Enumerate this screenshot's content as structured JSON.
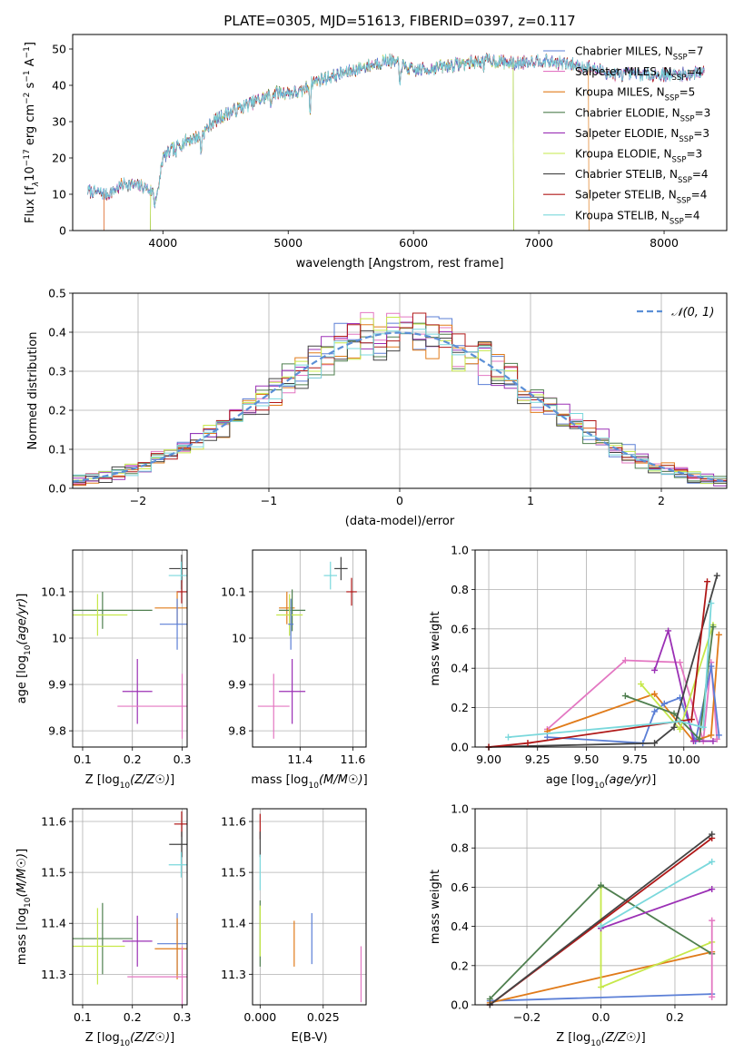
{
  "title": "PLATE=0305, MJD=51613, FIBERID=0397, z=0.117",
  "colors": {
    "chabrier_miles": "#5b7fd6",
    "salpeter_miles": "#e377c2",
    "kroupa_miles": "#e07b1a",
    "chabrier_elodie": "#4f7f4f",
    "salpeter_elodie": "#9b30b5",
    "kroupa_elodie": "#c6e84a",
    "chabrier_stelib": "#444444",
    "salpeter_stelib": "#b01818",
    "kroupa_stelib": "#7ad8dc",
    "normal_curve": "#5b8fd6"
  },
  "legend": [
    {
      "key": "chabrier_miles",
      "label": "Chabrier MILES, N",
      "sub": "SSP",
      "rest": "=7"
    },
    {
      "key": "salpeter_miles",
      "label": "Salpeter MILES, N",
      "sub": "SSP",
      "rest": "=4"
    },
    {
      "key": "kroupa_miles",
      "label": "Kroupa MILES, N",
      "sub": "SSP",
      "rest": "=5"
    },
    {
      "key": "chabrier_elodie",
      "label": "Chabrier ELODIE, N",
      "sub": "SSP",
      "rest": "=3"
    },
    {
      "key": "salpeter_elodie",
      "label": "Salpeter ELODIE, N",
      "sub": "SSP",
      "rest": "=3"
    },
    {
      "key": "kroupa_elodie",
      "label": "Kroupa ELODIE, N",
      "sub": "SSP",
      "rest": "=3"
    },
    {
      "key": "chabrier_stelib",
      "label": "Chabrier STELIB, N",
      "sub": "SSP",
      "rest": "=4"
    },
    {
      "key": "salpeter_stelib",
      "label": "Salpeter STELIB, N",
      "sub": "SSP",
      "rest": "=4"
    },
    {
      "key": "kroupa_stelib",
      "label": "Kroupa STELIB, N",
      "sub": "SSP",
      "rest": "=4"
    }
  ],
  "chart_data": [
    {
      "id": "spectrum",
      "type": "line",
      "xlabel": "wavelength [Angstrom, rest frame]",
      "ylabel": "Flux [f_λ 10^-17 erg cm^-2 s^-1 A^-1]",
      "xlim": [
        3280,
        8500
      ],
      "ylim": [
        0,
        54
      ],
      "xticks": [
        4000,
        5000,
        6000,
        7000,
        8000
      ],
      "yticks": [
        0,
        10,
        20,
        30,
        40,
        50
      ],
      "x_range_data": [
        3400,
        8320
      ],
      "continuum": [
        [
          3400,
          11
        ],
        [
          3550,
          10
        ],
        [
          3700,
          13
        ],
        [
          3850,
          12
        ],
        [
          3950,
          10
        ],
        [
          4000,
          20
        ],
        [
          4100,
          23
        ],
        [
          4200,
          25
        ],
        [
          4300,
          26
        ],
        [
          4400,
          30
        ],
        [
          4500,
          32
        ],
        [
          4700,
          35
        ],
        [
          4900,
          38
        ],
        [
          5100,
          38
        ],
        [
          5200,
          41
        ],
        [
          5400,
          43
        ],
        [
          5600,
          45
        ],
        [
          5800,
          47
        ],
        [
          6000,
          44
        ],
        [
          6200,
          45
        ],
        [
          6400,
          46
        ],
        [
          6600,
          47
        ],
        [
          6800,
          46
        ],
        [
          7000,
          47
        ],
        [
          7200,
          46
        ],
        [
          7400,
          45
        ],
        [
          7600,
          43
        ],
        [
          7800,
          43
        ],
        [
          8000,
          43
        ],
        [
          8200,
          43
        ],
        [
          8320,
          44
        ]
      ],
      "absorption_features": [
        [
          3934,
          4
        ],
        [
          3968,
          3
        ],
        [
          4102,
          3
        ],
        [
          4304,
          5
        ],
        [
          4861,
          3
        ],
        [
          5175,
          8
        ],
        [
          5890,
          6
        ],
        [
          6563,
          2
        ]
      ],
      "model_cutoffs": [
        {
          "key": "salpeter_miles",
          "start": 3530,
          "end": 8320
        },
        {
          "key": "kroupa_miles",
          "start": 3530,
          "end": 7400
        },
        {
          "key": "kroupa_elodie",
          "start": 3900,
          "end": 6800
        },
        {
          "key": "chabrier_elodie",
          "start": 3900,
          "end": 6800
        }
      ],
      "grid": false
    },
    {
      "id": "residual_histogram",
      "type": "histogram",
      "xlabel": "(data-model)/error",
      "ylabel": "Normed distribution",
      "xlim": [
        -2.5,
        2.5
      ],
      "ylim": [
        0,
        0.5
      ],
      "xticks": [
        -2,
        -1,
        0,
        1,
        2
      ],
      "yticks": [
        0.0,
        0.1,
        0.2,
        0.3,
        0.4,
        0.5
      ],
      "bin_width": 0.1,
      "series_keys": [
        "chabrier_miles",
        "salpeter_miles",
        "kroupa_miles",
        "chabrier_elodie",
        "salpeter_elodie",
        "kroupa_elodie",
        "chabrier_stelib",
        "salpeter_stelib",
        "kroupa_stelib"
      ],
      "legend_label": "𝒩(0, 1)",
      "legend_location": "upper right",
      "grid": true
    },
    {
      "id": "age_vs_Z",
      "type": "errorbar",
      "xlabel": "Z [log10(Z/Z☉)]",
      "ylabel": "age  [log10(age/yr)]",
      "xlim": [
        0.08,
        0.31
      ],
      "ylim": [
        9.765,
        10.19
      ],
      "xticks": [
        0.1,
        0.2,
        0.3
      ],
      "yticks": [
        9.8,
        9.9,
        10.0,
        10.1
      ],
      "points": [
        {
          "key": "chabrier_stelib",
          "x": 0.299,
          "xerr": 0.025,
          "y": 10.15,
          "yerr": 0.03
        },
        {
          "key": "kroupa_stelib",
          "x": 0.298,
          "xerr": 0.025,
          "y": 10.135,
          "yerr": 0.03
        },
        {
          "key": "salpeter_stelib",
          "x": 0.299,
          "xerr": 0.01,
          "y": 10.1,
          "yerr": 0.025
        },
        {
          "key": "kroupa_miles",
          "x": 0.29,
          "xerr": 0.045,
          "y": 10.065,
          "yerr": 0.035
        },
        {
          "key": "chabrier_elodie",
          "x": 0.14,
          "xerr": 0.1,
          "y": 10.06,
          "yerr": 0.04
        },
        {
          "key": "kroupa_elodie",
          "x": 0.13,
          "xerr": 0.06,
          "y": 10.05,
          "yerr": 0.045
        },
        {
          "key": "chabrier_miles",
          "x": 0.29,
          "xerr": 0.035,
          "y": 10.03,
          "yerr": 0.055
        },
        {
          "key": "salpeter_elodie",
          "x": 0.21,
          "xerr": 0.03,
          "y": 9.885,
          "yerr": 0.07
        },
        {
          "key": "salpeter_miles",
          "x": 0.3,
          "xerr": 0.13,
          "y": 9.853,
          "yerr": 0.07
        }
      ],
      "grid": true
    },
    {
      "id": "age_vs_mass",
      "type": "errorbar",
      "xlabel": "mass [log10(M/M☉)]",
      "ylabel": "",
      "xlim": [
        11.22,
        11.65
      ],
      "ylim": [
        9.765,
        10.19
      ],
      "xticks": [
        11.4,
        11.6
      ],
      "yticks": [
        9.8,
        9.9,
        10.0,
        10.1
      ],
      "points": [
        {
          "key": "chabrier_stelib",
          "x": 11.555,
          "xerr": 0.025,
          "y": 10.15,
          "yerr": 0.025
        },
        {
          "key": "kroupa_stelib",
          "x": 11.515,
          "xerr": 0.025,
          "y": 10.135,
          "yerr": 0.03
        },
        {
          "key": "salpeter_stelib",
          "x": 11.595,
          "xerr": 0.02,
          "y": 10.1,
          "yerr": 0.03
        },
        {
          "key": "kroupa_miles",
          "x": 11.35,
          "xerr": 0.03,
          "y": 10.065,
          "yerr": 0.035
        },
        {
          "key": "chabrier_elodie",
          "x": 11.37,
          "xerr": 0.05,
          "y": 10.06,
          "yerr": 0.045
        },
        {
          "key": "kroupa_elodie",
          "x": 11.36,
          "xerr": 0.05,
          "y": 10.05,
          "yerr": 0.045
        },
        {
          "key": "chabrier_miles",
          "x": 11.365,
          "xerr": 0.01,
          "y": 10.03,
          "yerr": 0.055
        },
        {
          "key": "salpeter_elodie",
          "x": 11.37,
          "xerr": 0.05,
          "y": 9.885,
          "yerr": 0.07
        },
        {
          "key": "salpeter_miles",
          "x": 11.3,
          "xerr": 0.06,
          "y": 9.853,
          "yerr": 0.07
        }
      ],
      "grid": true
    },
    {
      "id": "massweight_vs_age",
      "type": "line",
      "xlabel": "age  [log10(age/yr)]",
      "ylabel": "mass weight",
      "xlim": [
        8.93,
        10.22
      ],
      "ylim": [
        0,
        1.0
      ],
      "xticks": [
        9.0,
        9.25,
        9.5,
        9.75,
        10.0
      ],
      "xticklabels": [
        "9.00",
        "9.25",
        "9.50",
        "9.75",
        "10.00"
      ],
      "yticks": [
        0.0,
        0.2,
        0.4,
        0.6,
        0.8,
        1.0
      ],
      "series": [
        {
          "key": "salpeter_miles",
          "points": [
            [
              9.3,
              0.09
            ],
            [
              9.7,
              0.44
            ],
            [
              9.98,
              0.43
            ],
            [
              10.1,
              0.03
            ],
            [
              10.14,
              0.43
            ],
            [
              10.17,
              0.04
            ]
          ]
        },
        {
          "key": "kroupa_miles",
          "points": [
            [
              9.3,
              0.08
            ],
            [
              9.85,
              0.27
            ],
            [
              10.05,
              0.03
            ],
            [
              10.14,
              0.06
            ],
            [
              10.18,
              0.57
            ]
          ]
        },
        {
          "key": "chabrier_miles",
          "points": [
            [
              9.3,
              0.05
            ],
            [
              9.79,
              0.02
            ],
            [
              9.85,
              0.18
            ],
            [
              9.9,
              0.22
            ],
            [
              9.98,
              0.25
            ],
            [
              10.06,
              0.03
            ],
            [
              10.14,
              0.41
            ],
            [
              10.18,
              0.06
            ]
          ]
        },
        {
          "key": "salpeter_elodie",
          "points": [
            [
              9.85,
              0.39
            ],
            [
              9.92,
              0.59
            ],
            [
              10.05,
              0.03
            ],
            [
              10.15,
              0.03
            ]
          ]
        },
        {
          "key": "kroupa_elodie",
          "points": [
            [
              9.78,
              0.32
            ],
            [
              9.98,
              0.09
            ],
            [
              10.15,
              0.62
            ]
          ]
        },
        {
          "key": "chabrier_elodie",
          "points": [
            [
              9.7,
              0.26
            ],
            [
              9.95,
              0.17
            ],
            [
              10.08,
              0.04
            ],
            [
              10.15,
              0.61
            ]
          ]
        },
        {
          "key": "chabrier_stelib",
          "points": [
            [
              9.0,
              0.0
            ],
            [
              9.85,
              0.02
            ],
            [
              9.95,
              0.1
            ],
            [
              10.17,
              0.87
            ]
          ]
        },
        {
          "key": "salpeter_stelib",
          "points": [
            [
              9.0,
              0.0
            ],
            [
              9.2,
              0.02
            ],
            [
              10.04,
              0.14
            ],
            [
              10.12,
              0.84
            ]
          ]
        },
        {
          "key": "kroupa_stelib",
          "points": [
            [
              9.1,
              0.05
            ],
            [
              9.98,
              0.13
            ],
            [
              10.1,
              0.1
            ],
            [
              10.14,
              0.73
            ]
          ]
        }
      ],
      "grid": true
    },
    {
      "id": "mass_vs_Z",
      "type": "errorbar",
      "xlabel": "Z [log10(Z/Z☉)]",
      "ylabel": "mass [log10(M/M☉)]",
      "xlim": [
        0.08,
        0.31
      ],
      "ylim": [
        11.24,
        11.625
      ],
      "xticks": [
        0.1,
        0.2,
        0.3
      ],
      "yticks": [
        11.3,
        11.4,
        11.5,
        11.6
      ],
      "points": [
        {
          "key": "salpeter_stelib",
          "x": 0.299,
          "xerr": 0.015,
          "y": 11.595,
          "yerr": 0.025
        },
        {
          "key": "chabrier_stelib",
          "x": 0.299,
          "xerr": 0.025,
          "y": 11.555,
          "yerr": 0.025
        },
        {
          "key": "kroupa_stelib",
          "x": 0.298,
          "xerr": 0.025,
          "y": 11.515,
          "yerr": 0.025
        },
        {
          "key": "chabrier_elodie",
          "x": 0.14,
          "xerr": 0.06,
          "y": 11.37,
          "yerr": 0.07
        },
        {
          "key": "salpeter_elodie",
          "x": 0.21,
          "xerr": 0.03,
          "y": 11.365,
          "yerr": 0.05
        },
        {
          "key": "chabrier_miles",
          "x": 0.29,
          "xerr": 0.04,
          "y": 11.36,
          "yerr": 0.06
        },
        {
          "key": "kroupa_elodie",
          "x": 0.13,
          "xerr": 0.055,
          "y": 11.355,
          "yerr": 0.075
        },
        {
          "key": "kroupa_miles",
          "x": 0.29,
          "xerr": 0.045,
          "y": 11.35,
          "yerr": 0.06
        },
        {
          "key": "salpeter_miles",
          "x": 0.3,
          "xerr": 0.11,
          "y": 11.295,
          "yerr": 0.06
        }
      ],
      "grid": true
    },
    {
      "id": "mass_vs_EBV",
      "type": "errorbar",
      "xlabel": "E(B-V)",
      "ylabel": "",
      "xlim": [
        -0.003,
        0.042
      ],
      "ylim": [
        11.24,
        11.625
      ],
      "xticks": [
        0.0,
        0.025
      ],
      "xticklabels": [
        "0.000",
        "0.025"
      ],
      "yticks": [
        11.3,
        11.4,
        11.5,
        11.6
      ],
      "points": [
        {
          "key": "salpeter_stelib",
          "x": 0.0,
          "y": 11.59,
          "yerr": 0.025
        },
        {
          "key": "chabrier_stelib",
          "x": 0.0,
          "y": 11.555,
          "yerr": 0.025
        },
        {
          "key": "kroupa_stelib",
          "x": 0.0,
          "y": 11.5,
          "yerr": 0.035
        },
        {
          "key": "chabrier_elodie",
          "x": 0.0,
          "y": 11.38,
          "yerr": 0.065
        },
        {
          "key": "kroupa_elodie",
          "x": 0.0,
          "y": 11.385,
          "yerr": 0.05
        },
        {
          "key": "chabrier_miles",
          "x": 0.0205,
          "y": 11.37,
          "yerr": 0.05
        },
        {
          "key": "kroupa_miles",
          "x": 0.0135,
          "y": 11.36,
          "yerr": 0.045
        },
        {
          "key": "salpeter_miles",
          "x": 0.04,
          "y": 11.3,
          "yerr": 0.055
        }
      ],
      "grid": true
    },
    {
      "id": "massweight_vs_Z",
      "type": "line",
      "xlabel": "Z [log10(Z/Z☉)]",
      "ylabel": "mass weight",
      "xlim": [
        -0.34,
        0.34
      ],
      "ylim": [
        0,
        1.0
      ],
      "xticks": [
        -0.2,
        0.0,
        0.2
      ],
      "xticklabels": [
        "−0.2",
        "0.0",
        "0.2"
      ],
      "yticks": [
        0.0,
        0.2,
        0.4,
        0.6,
        0.8,
        1.0
      ],
      "series": [
        {
          "key": "chabrier_miles",
          "points": [
            [
              -0.3,
              0.02
            ],
            [
              0.3,
              0.055
            ]
          ]
        },
        {
          "key": "kroupa_miles",
          "points": [
            [
              -0.3,
              0.01
            ],
            [
              0.3,
              0.27
            ]
          ]
        },
        {
          "key": "kroupa_elodie",
          "points": [
            [
              0.0,
              0.6
            ],
            [
              0.0,
              0.09
            ],
            [
              0.3,
              0.32
            ]
          ]
        },
        {
          "key": "chabrier_elodie",
          "points": [
            [
              -0.3,
              0.03
            ],
            [
              0.0,
              0.61
            ],
            [
              0.3,
              0.26
            ]
          ]
        },
        {
          "key": "salpeter_elodie",
          "points": [
            [
              0.0,
              0.39
            ],
            [
              0.3,
              0.59
            ]
          ]
        },
        {
          "key": "kroupa_stelib",
          "points": [
            [
              0.0,
              0.4
            ],
            [
              0.3,
              0.73
            ]
          ]
        },
        {
          "key": "salpeter_stelib",
          "points": [
            [
              -0.3,
              0.0
            ],
            [
              0.3,
              0.85
            ]
          ]
        },
        {
          "key": "chabrier_stelib",
          "points": [
            [
              -0.3,
              0.0
            ],
            [
              0.3,
              0.87
            ]
          ]
        },
        {
          "key": "salpeter_miles",
          "points": [
            [
              0.3,
              0.43
            ],
            [
              0.3,
              0.04
            ]
          ]
        }
      ],
      "grid": true
    }
  ]
}
